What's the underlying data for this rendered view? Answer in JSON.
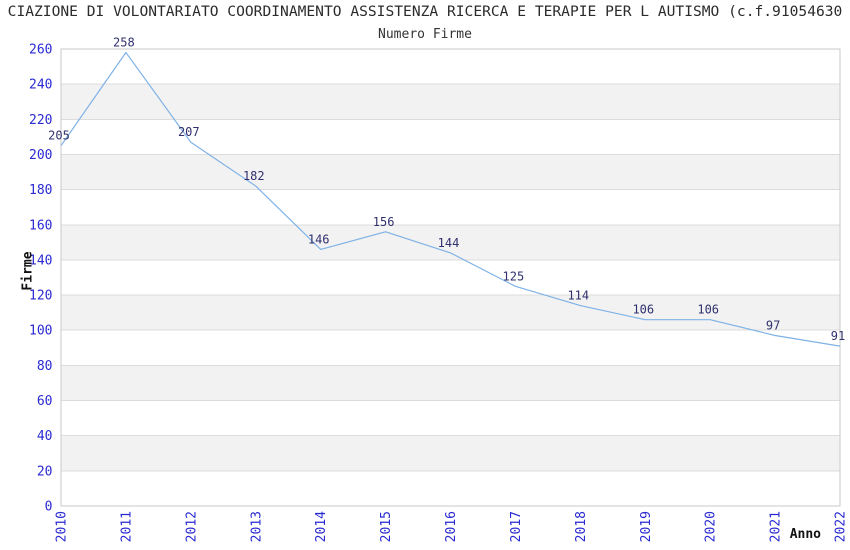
{
  "header": {
    "title": "CIAZIONE DI VOLONTARIATO COORDINAMENTO ASSISTENZA RICERCA E TERAPIE PER L AUTISMO (c.f.91054630"
  },
  "chart_data": {
    "type": "line",
    "title": "Numero Firme",
    "xlabel": "Anno",
    "ylabel": "Firme",
    "categories": [
      "2010",
      "2011",
      "2012",
      "2013",
      "2014",
      "2015",
      "2016",
      "2017",
      "2018",
      "2019",
      "2020",
      "2021",
      "2022"
    ],
    "values": [
      205,
      258,
      207,
      182,
      146,
      156,
      144,
      125,
      114,
      106,
      106,
      97,
      91
    ],
    "data_labels_visible": true,
    "ylim": [
      0,
      260
    ],
    "ytick_step": 20,
    "yticks": [
      0,
      20,
      40,
      60,
      80,
      100,
      120,
      140,
      160,
      180,
      200,
      220,
      240,
      260
    ],
    "grid": "horizontal-gridlines-with-alternating-bands",
    "legend_position": "none",
    "colors": {
      "line": "#7fb2e5",
      "tick_label": "#2a2ad2",
      "data_label": "#30306e",
      "band_fill": "#f2f2f2",
      "gridline": "#dcdcdc",
      "plot_border": "#c9c9c9",
      "title_text": "#2b2b2b"
    }
  }
}
